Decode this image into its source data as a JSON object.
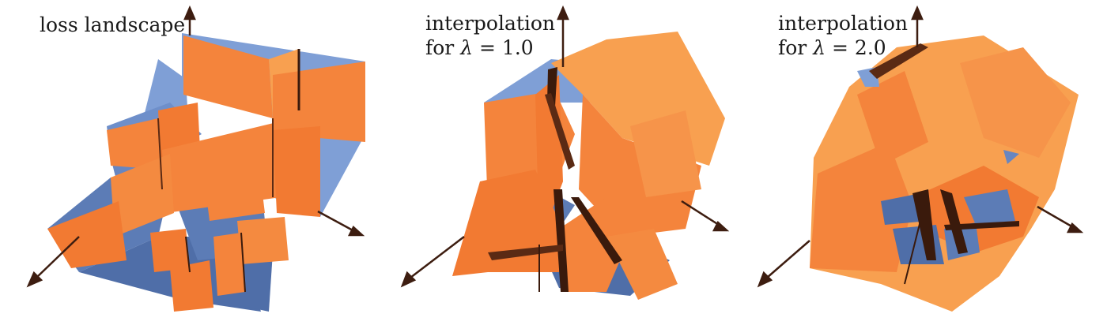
{
  "panels": [
    {
      "id": "loss",
      "label_line1": "loss landscape"
    },
    {
      "id": "interp1",
      "label_line1": "interpolation",
      "label_prefix": "for",
      "symbol": "λ",
      "label_value": "= 1.0"
    },
    {
      "id": "interp2",
      "label_line1": "interpolation",
      "label_prefix": "for",
      "symbol": "λ",
      "label_value": "= 2.0"
    }
  ],
  "colors": {
    "surface_top": "#7f9fd6",
    "surface_dark": "#4f6ea8",
    "wall_orange": "#f4843c",
    "wall_light": "#f8a050",
    "crease": "#3a1a0c",
    "axis": "#3d1d10"
  }
}
